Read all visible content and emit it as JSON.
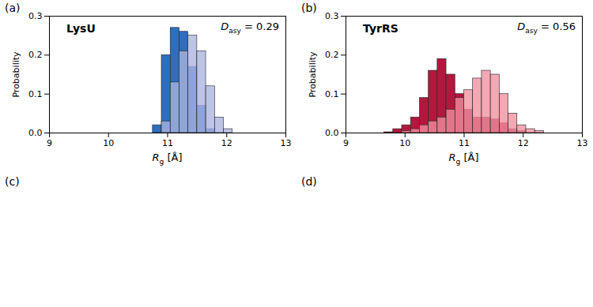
{
  "chart_data": [
    {
      "type": "histogram",
      "panel_label": "(a)",
      "title": "LysU",
      "annotation": {
        "symbol": "D",
        "subscript": "asy",
        "relation": "=",
        "value": 0.29
      },
      "x_label": {
        "symbol": "R",
        "subscript": "g",
        "suffix": "[Å]"
      },
      "y_label": "Probability",
      "bins": [
        10.6,
        10.75,
        10.9,
        11.05,
        11.2,
        11.35,
        11.5,
        11.65,
        11.8,
        11.95,
        12.1
      ],
      "series": [
        {
          "color": "#2d6ebf",
          "values": [
            0.0,
            0.02,
            0.2,
            0.27,
            0.26,
            0.17,
            0.07,
            0.01,
            0.0,
            0.0
          ]
        },
        {
          "color": "#aab3e2",
          "values": [
            0.0,
            0.0,
            0.03,
            0.13,
            0.21,
            0.25,
            0.21,
            0.12,
            0.04,
            0.01
          ]
        }
      ],
      "xlim": [
        9,
        13
      ],
      "xticks": [
        9,
        10,
        11,
        12,
        13
      ],
      "ylim": [
        0,
        0.3
      ],
      "yticks": [
        {
          "value": 0,
          "label": "0.0"
        },
        {
          "value": 0.1,
          "label": "0.1"
        },
        {
          "value": 0.2,
          "label": "0.2"
        },
        {
          "value": 0.3,
          "label": "0.3"
        }
      ],
      "grid": false
    },
    {
      "type": "histogram",
      "panel_label": "(b)",
      "title": "TyrRS",
      "annotation": {
        "symbol": "D",
        "subscript": "asy",
        "relation": "=",
        "value": 0.56
      },
      "x_label": {
        "symbol": "R",
        "subscript": "g",
        "suffix": "[Å]"
      },
      "y_label": "Probability",
      "bins": [
        9.65,
        9.8,
        9.95,
        10.1,
        10.25,
        10.4,
        10.55,
        10.7,
        10.85,
        11.0,
        11.15,
        11.3,
        11.45,
        11.6,
        11.75,
        11.9,
        12.05,
        12.2,
        12.35
      ],
      "series": [
        {
          "color": "#b2183e",
          "values": [
            0.002,
            0.01,
            0.02,
            0.04,
            0.09,
            0.16,
            0.19,
            0.15,
            0.1,
            0.06,
            0.04,
            0.04,
            0.035,
            0.025,
            0.01,
            0.005,
            0.0,
            0.0
          ]
        },
        {
          "color": "#f0909f",
          "values": [
            0.0,
            0.0,
            0.005,
            0.01,
            0.02,
            0.03,
            0.04,
            0.06,
            0.09,
            0.11,
            0.14,
            0.16,
            0.15,
            0.1,
            0.05,
            0.02,
            0.01,
            0.005
          ]
        }
      ],
      "xlim": [
        9,
        13
      ],
      "xticks": [
        9,
        10,
        11,
        12,
        13
      ],
      "ylim": [
        0,
        0.3
      ],
      "yticks": [
        {
          "value": 0,
          "label": "0.0"
        },
        {
          "value": 0.1,
          "label": "0.1"
        },
        {
          "value": 0.2,
          "label": "0.2"
        },
        {
          "value": 0.3,
          "label": "0.3"
        }
      ],
      "grid": false
    }
  ],
  "images": [
    {
      "panel_label": "(c)"
    },
    {
      "panel_label": "(d)"
    }
  ]
}
